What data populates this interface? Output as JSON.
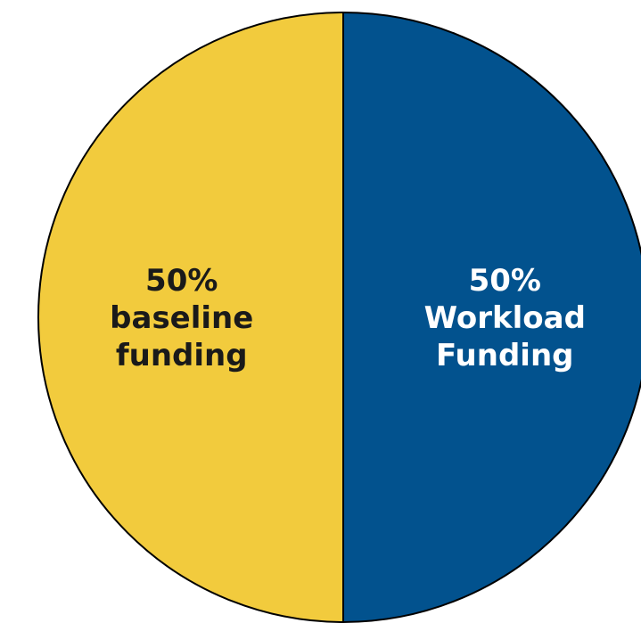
{
  "chart_data": {
    "type": "pie",
    "title": "",
    "slices": [
      {
        "percent": 50,
        "value_label": "50%",
        "label_lines": [
          "baseline",
          "funding"
        ],
        "color": "#F2CB3D",
        "text_color": "#1a1a1a"
      },
      {
        "percent": 50,
        "value_label": "50%",
        "label_lines": [
          "Workload",
          "Funding"
        ],
        "color": "#02528E",
        "text_color": "#ffffff"
      }
    ],
    "outline_color": "#000000",
    "legend": "none"
  }
}
